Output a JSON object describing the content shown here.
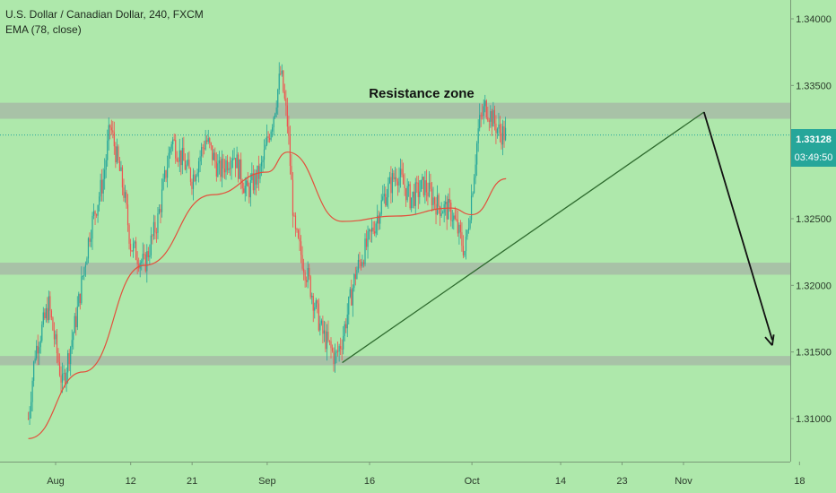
{
  "legend": {
    "symbol": "U.S. Dollar / Canadian Dollar, 240, FXCM",
    "indicator": "EMA (78, close)"
  },
  "annotation": {
    "resistance_label": "Resistance zone"
  },
  "price_tag": {
    "price": "1.33128",
    "countdown": "03:49:50"
  },
  "colors": {
    "background": "#aee8ab",
    "zone": "#a7bba6",
    "candle_up": "#26a69a",
    "candle_down": "#ef5350",
    "ema": "#e3503c",
    "trendline": "#2e6b2e",
    "arrow": "#111111",
    "price_tag_bg": "#26a69a"
  },
  "chart_data": {
    "type": "candlestick",
    "title": "U.S. Dollar / Canadian Dollar, 240, FXCM",
    "ylim": [
      1.3055,
      1.3425
    ],
    "y_ticks": [
      {
        "value": 1.34,
        "label": "1.34000"
      },
      {
        "value": 1.335,
        "label": "1.33500"
      },
      {
        "value": 1.33,
        "label": "1.33000"
      },
      {
        "value": 1.325,
        "label": "1.32500"
      },
      {
        "value": 1.32,
        "label": "1.32000"
      },
      {
        "value": 1.315,
        "label": "1.31500"
      },
      {
        "value": 1.31,
        "label": "1.31000"
      }
    ],
    "x_ticks": [
      "Aug",
      "12",
      "21",
      "Sep",
      "16",
      "Oct",
      "14",
      "23",
      "Nov",
      "18"
    ],
    "zones": [
      {
        "name": "Resistance zone",
        "low": 1.3325,
        "high": 1.3337
      },
      {
        "low": 1.3208,
        "high": 1.3217
      },
      {
        "low": 1.314,
        "high": 1.3147
      }
    ],
    "current_price": 1.33128,
    "anchors": [
      {
        "date": "Jul 28",
        "price": 1.31
      },
      {
        "date": "Jul 29",
        "price": 1.315
      },
      {
        "date": "Jul 31",
        "price": 1.3185
      },
      {
        "date": "Aug 2",
        "price": 1.3125
      },
      {
        "date": "Aug 4",
        "price": 1.3175
      },
      {
        "date": "Aug 6",
        "price": 1.324
      },
      {
        "date": "Aug 8",
        "price": 1.328
      },
      {
        "date": "Aug 9",
        "price": 1.332
      },
      {
        "date": "Aug 11",
        "price": 1.327
      },
      {
        "date": "Aug 12",
        "price": 1.323
      },
      {
        "date": "Aug 14",
        "price": 1.3215
      },
      {
        "date": "Aug 16",
        "price": 1.325
      },
      {
        "date": "Aug 18",
        "price": 1.331
      },
      {
        "date": "Aug 21",
        "price": 1.328
      },
      {
        "date": "Aug 23",
        "price": 1.331
      },
      {
        "date": "Aug 25",
        "price": 1.3285
      },
      {
        "date": "Aug 27",
        "price": 1.33
      },
      {
        "date": "Aug 29",
        "price": 1.327
      },
      {
        "date": "Aug 31",
        "price": 1.3285
      },
      {
        "date": "Sep 2",
        "price": 1.333
      },
      {
        "date": "Sep 3",
        "price": 1.336
      },
      {
        "date": "Sep 4",
        "price": 1.332
      },
      {
        "date": "Sep 5",
        "price": 1.324
      },
      {
        "date": "Sep 7",
        "price": 1.3205
      },
      {
        "date": "Sep 9",
        "price": 1.3165
      },
      {
        "date": "Sep 11",
        "price": 1.3145
      },
      {
        "date": "Sep 12",
        "price": 1.316
      },
      {
        "date": "Sep 14",
        "price": 1.321
      },
      {
        "date": "Sep 16",
        "price": 1.3235
      },
      {
        "date": "Sep 18",
        "price": 1.3265
      },
      {
        "date": "Sep 20",
        "price": 1.3285
      },
      {
        "date": "Sep 22",
        "price": 1.3265
      },
      {
        "date": "Sep 24",
        "price": 1.3275
      },
      {
        "date": "Sep 26",
        "price": 1.326
      },
      {
        "date": "Sep 28",
        "price": 1.3255
      },
      {
        "date": "Sep 30",
        "price": 1.3225
      },
      {
        "date": "Oct 1",
        "price": 1.327
      },
      {
        "date": "Oct 2",
        "price": 1.332
      },
      {
        "date": "Oct 3",
        "price": 1.3335
      },
      {
        "date": "Oct 5",
        "price": 1.3315
      },
      {
        "date": "Oct 6",
        "price": 1.3313
      }
    ],
    "ema": {
      "name": "EMA (78, close)",
      "points": [
        {
          "date": "Jul 28",
          "price": 1.3085
        },
        {
          "date": "Aug 5",
          "price": 1.3135
        },
        {
          "date": "Aug 14",
          "price": 1.3215
        },
        {
          "date": "Aug 24",
          "price": 1.3268
        },
        {
          "date": "Sep 1",
          "price": 1.3285
        },
        {
          "date": "Sep 4",
          "price": 1.33
        },
        {
          "date": "Sep 12",
          "price": 1.3248
        },
        {
          "date": "Sep 20",
          "price": 1.3252
        },
        {
          "date": "Sep 28",
          "price": 1.3258
        },
        {
          "date": "Oct 1",
          "price": 1.3253
        },
        {
          "date": "Oct 6",
          "price": 1.328
        }
      ]
    },
    "trendline": {
      "start": {
        "date": "Sep 12",
        "price": 1.3142
      },
      "end": {
        "date": "Nov 4",
        "price": 1.333
      }
    },
    "projection_arrow": {
      "start": {
        "date": "Nov 4",
        "price": 1.333
      },
      "end": {
        "date": "Nov 14",
        "price": 1.3155
      }
    }
  }
}
